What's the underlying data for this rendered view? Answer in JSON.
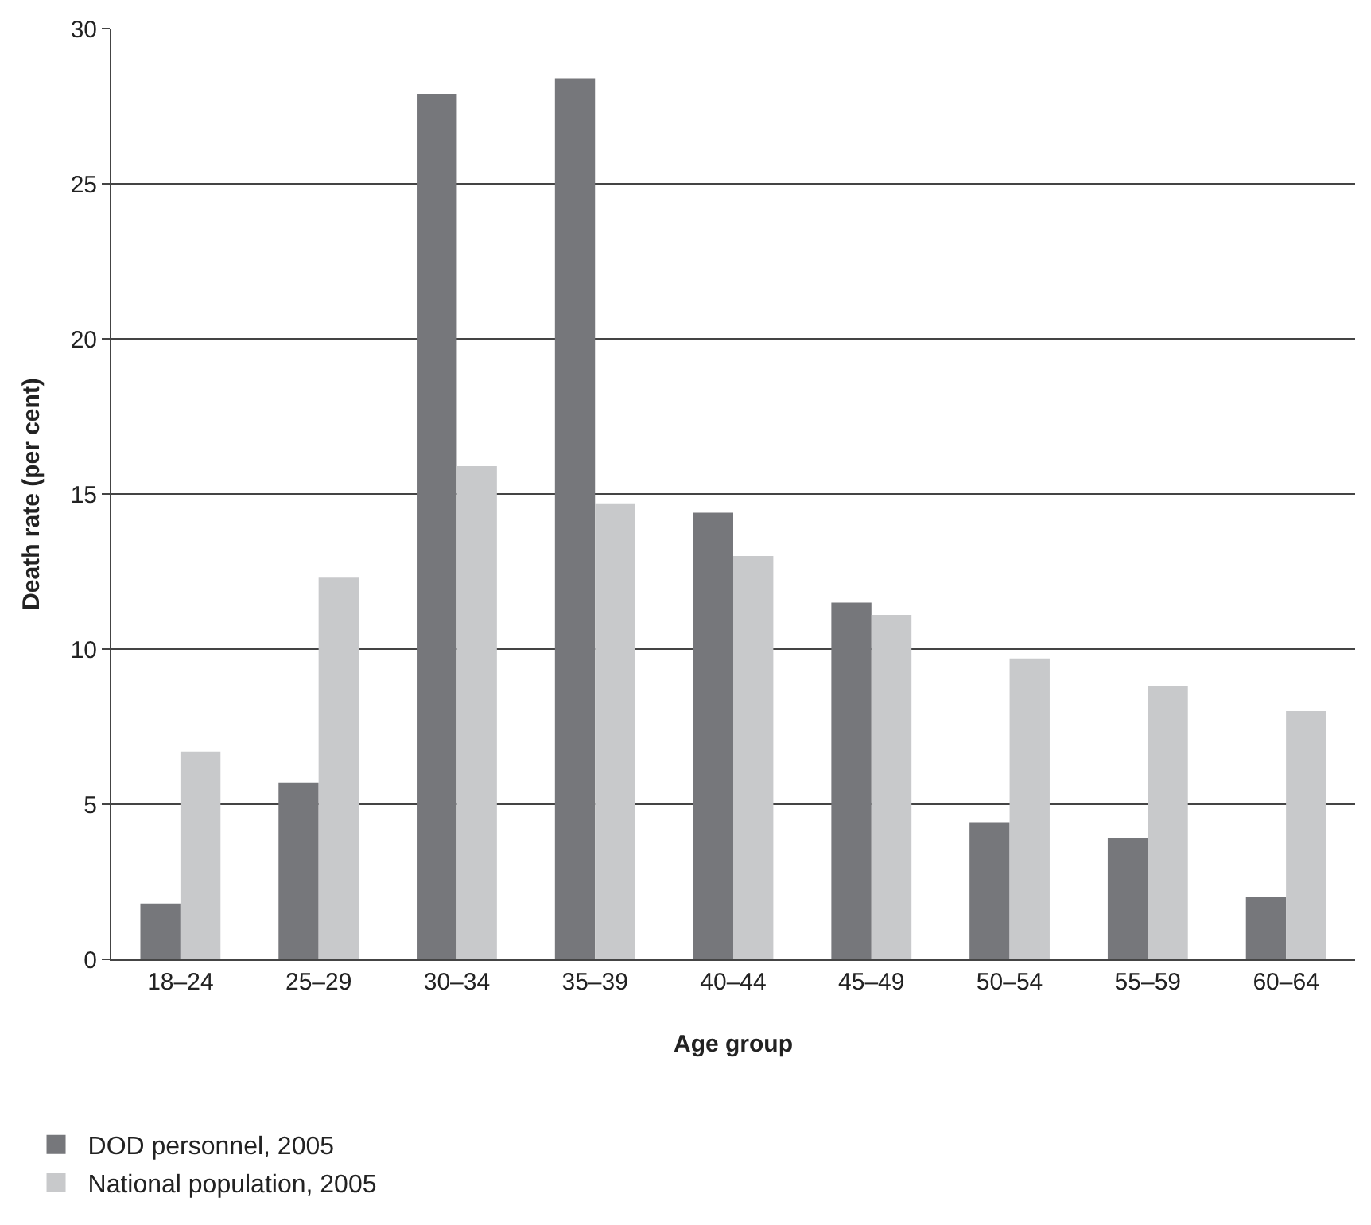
{
  "chart_data": {
    "type": "bar",
    "xlabel": "Age group",
    "ylabel": "Death rate (per cent)",
    "categories": [
      "18–24",
      "25–29",
      "30–34",
      "35–39",
      "40–44",
      "45–49",
      "50–54",
      "55–59",
      "60–64"
    ],
    "series": [
      {
        "name": "DOD personnel, 2005",
        "color": "#76777b",
        "values": [
          1.8,
          5.7,
          27.9,
          28.4,
          14.4,
          11.5,
          4.4,
          3.9,
          2.0
        ]
      },
      {
        "name": "National population, 2005",
        "color": "#c8c9cb",
        "values": [
          6.7,
          12.3,
          15.9,
          14.7,
          13.0,
          11.1,
          9.7,
          8.8,
          8.0
        ]
      }
    ],
    "ylim": [
      0,
      30
    ],
    "yticks": [
      0,
      5,
      10,
      15,
      20,
      25,
      30
    ],
    "grid": "y",
    "legend": "bottom left"
  }
}
